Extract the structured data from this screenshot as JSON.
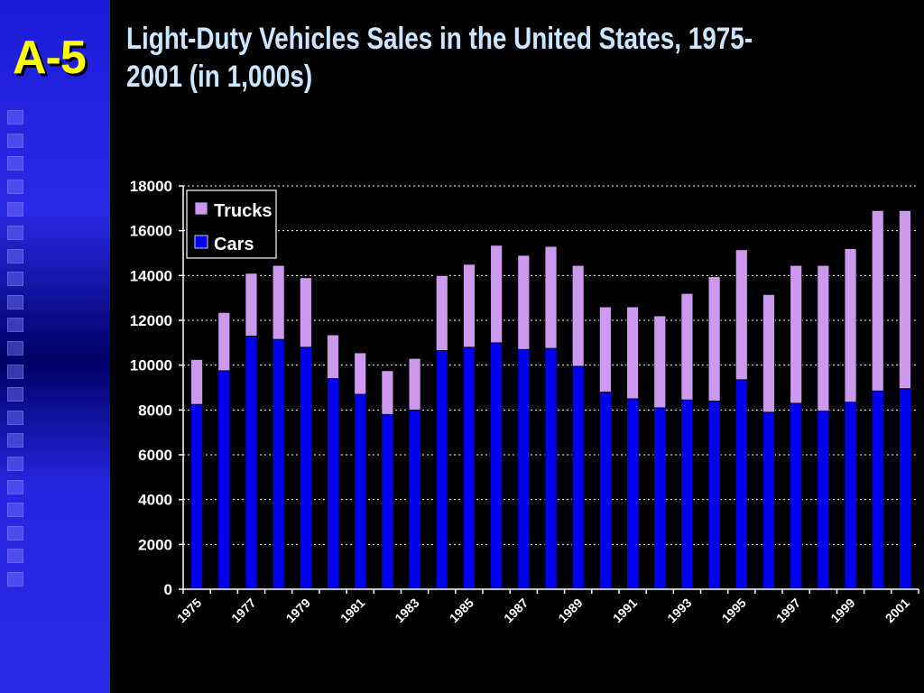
{
  "slide": {
    "number": "A-5",
    "title_line1": "Light-Duty Vehicles Sales in the United States, 1975-",
    "title_line2": "2001 (in 1,000s)"
  },
  "colors": {
    "background": "#000000",
    "title": "#cce6ff",
    "slide_number": "#ffff00",
    "cars": "#0000ee",
    "trucks": "#cc99ee",
    "axis": "#ffffff"
  },
  "chart_data": {
    "type": "bar",
    "stacked": true,
    "title": "",
    "xlabel": "",
    "ylabel": "",
    "ylim": [
      0,
      18000
    ],
    "yticks": [
      0,
      2000,
      4000,
      6000,
      8000,
      10000,
      12000,
      14000,
      16000,
      18000
    ],
    "grid": "horizontal dotted",
    "legend_position": "top-left",
    "categories": [
      "1975",
      "1976",
      "1977",
      "1978",
      "1979",
      "1980",
      "1981",
      "1982",
      "1983",
      "1984",
      "1985",
      "1986",
      "1987",
      "1988",
      "1989",
      "1990",
      "1991",
      "1992",
      "1993",
      "1994",
      "1995",
      "1996",
      "1997",
      "1998",
      "1999",
      "2000",
      "2001"
    ],
    "xtick_labels": [
      "1975",
      "1977",
      "1979",
      "1981",
      "1983",
      "1985",
      "1987",
      "1989",
      "1991",
      "1993",
      "1995",
      "1997",
      "1999",
      "2001"
    ],
    "series": [
      {
        "name": "Cars",
        "color": "#0000ee",
        "values": [
          8250,
          9750,
          11300,
          11150,
          10800,
          9400,
          8700,
          7800,
          8000,
          10650,
          10800,
          11000,
          10700,
          10750,
          9950,
          8800,
          8500,
          8100,
          8450,
          8400,
          9350,
          7900,
          8300,
          7950,
          8350,
          8850,
          8950
        ]
      },
      {
        "name": "Trucks",
        "color": "#cc99ee",
        "values": [
          2000,
          2600,
          2800,
          3300,
          3100,
          1950,
          1850,
          1950,
          2300,
          3350,
          3700,
          4350,
          4200,
          4550,
          4500,
          3800,
          4100,
          4100,
          4750,
          5550,
          5800,
          5250,
          6150,
          6500,
          6850,
          8050,
          7950
        ]
      }
    ],
    "legend": [
      "Trucks",
      "Cars"
    ]
  }
}
